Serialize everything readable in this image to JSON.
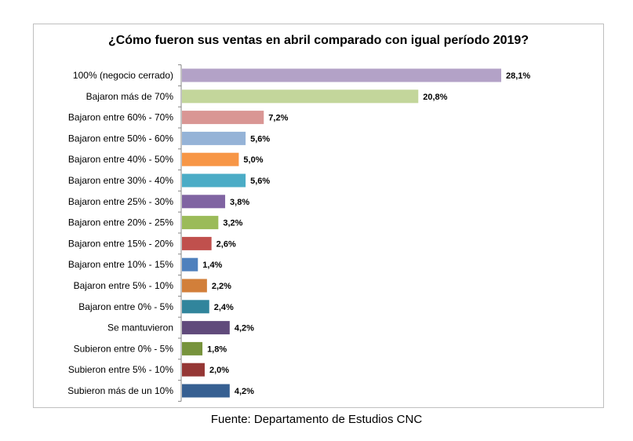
{
  "source": "Fuente: Departamento de Estudios CNC",
  "chart_data": {
    "type": "bar",
    "orientation": "horizontal",
    "title": "¿Cómo fueron sus ventas en abril comparado con igual período 2019?",
    "xlabel": "",
    "ylabel": "",
    "unit": "%",
    "xlim": [
      0,
      28.1
    ],
    "grid": false,
    "legend": "none",
    "categories": [
      "100% (negocio cerrado)",
      "Bajaron más de 70%",
      "Bajaron entre 60% - 70%",
      "Bajaron entre 50% - 60%",
      "Bajaron entre 40% - 50%",
      "Bajaron entre 30% - 40%",
      "Bajaron entre 25% - 30%",
      "Bajaron entre 20% - 25%",
      "Bajaron entre 15% - 20%",
      "Bajaron entre 10% - 15%",
      "Bajaron entre 5% - 10%",
      "Bajaron entre 0% - 5%",
      "Se mantuvieron",
      "Subieron entre 0% - 5%",
      "Subieron entre 5% - 10%",
      "Subieron más de un 10%"
    ],
    "values": [
      28.1,
      20.8,
      7.2,
      5.6,
      5.0,
      5.6,
      3.8,
      3.2,
      2.6,
      1.4,
      2.2,
      2.4,
      4.2,
      1.8,
      2.0,
      4.2
    ],
    "value_labels": [
      "28,1%",
      "20,8%",
      "7,2%",
      "5,6%",
      "5,0%",
      "5,6%",
      "3,8%",
      "3,2%",
      "2,6%",
      "1,4%",
      "2,2%",
      "2,4%",
      "4,2%",
      "1,8%",
      "2,0%",
      "4,2%"
    ],
    "colors": [
      "#b3a2c7",
      "#c3d69b",
      "#d99694",
      "#95b3d7",
      "#f79646",
      "#4bacc6",
      "#8064a2",
      "#9bbb59",
      "#c0504d",
      "#4f81bd",
      "#d27f3a",
      "#31859c",
      "#604a7b",
      "#77933c",
      "#953735",
      "#376092"
    ]
  }
}
